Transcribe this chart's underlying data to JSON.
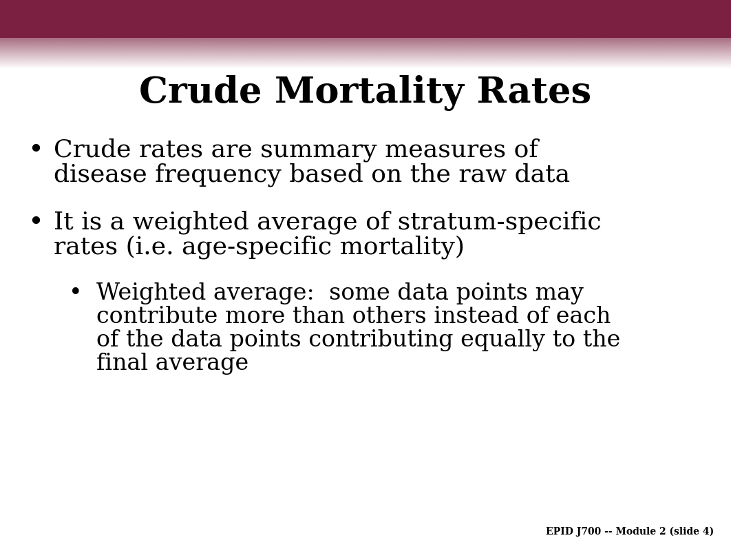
{
  "title": "Crude Mortality Rates",
  "title_fontsize": 38,
  "title_fontweight": "bold",
  "title_color": "#000000",
  "bg_color": "#ffffff",
  "header_color": "#7b2040",
  "footer_text": "EPID J700 -- Module 2 (slide 4)",
  "footer_fontsize": 10,
  "footer_color": "#000000",
  "bullet1_line1": "Crude rates are summary measures of",
  "bullet1_line2": "disease frequency based on the raw data",
  "bullet2_line1": "It is a weighted average of stratum-specific",
  "bullet2_line2": "rates (i.e. age-specific mortality)",
  "sub_line1": "Weighted average:  some data points may",
  "sub_line2": "contribute more than others instead of each",
  "sub_line3": "of the data points contributing equally to the",
  "sub_line4": "final average",
  "bullet_fontsize": 26,
  "sub_bullet_fontsize": 24,
  "bullet_color": "#000000",
  "font_family": "DejaVu Serif"
}
